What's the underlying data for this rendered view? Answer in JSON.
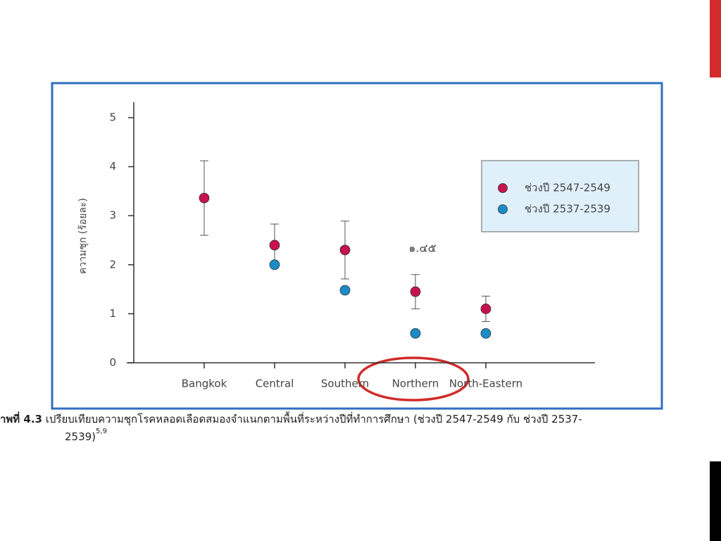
{
  "chart_data": {
    "type": "dot_errorbar",
    "y_label": "ความชุก (ร้อยละ)",
    "categories": [
      "Bangkok",
      "Central",
      "Southern",
      "Northern",
      "North-Eastern"
    ],
    "series": [
      {
        "name": "ช่วงปี 2547-2549",
        "color": "#c8124e",
        "values": [
          3.36,
          2.4,
          2.3,
          1.45,
          1.1
        ],
        "errors": [
          0.76,
          0.43,
          0.59,
          0.35,
          0.26
        ]
      },
      {
        "name": "ช่วงปี 2537-2539",
        "color": "#1a8cc8",
        "values": [
          null,
          2.0,
          1.48,
          0.6,
          0.6
        ]
      }
    ],
    "ylim": [
      0,
      5.3
    ],
    "yticks": [
      0,
      1,
      2,
      3,
      4,
      5
    ],
    "annotation": "๑.๔๕",
    "legend": "right"
  },
  "caption": {
    "label": "าพที่ 4.3",
    "text": " เปรียบเทียบความชุกโรคหลอดเลือดสมองจำแนกตามพื้นที่ระหว่างปีที่ทำการศึกษา (ช่วงปี 2547-2549 กับ ช่วงปี 2537-",
    "text_2": "2539)",
    "ref": "5,9"
  }
}
